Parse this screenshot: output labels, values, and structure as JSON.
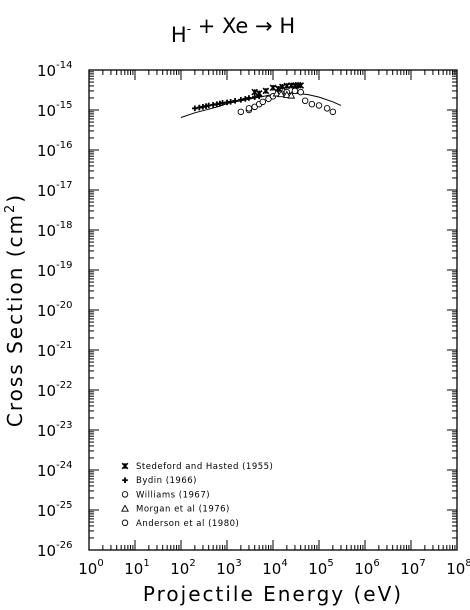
{
  "chart_data": {
    "type": "scatter",
    "title": {
      "projectile": "H",
      "projectile_charge": "-",
      "plus": "+",
      "target": "Xe",
      "arrow": "→",
      "product": "H"
    },
    "xlabel": "Projectile Energy (eV)",
    "ylabel": "Cross Section (cm²)",
    "x_scale": "log",
    "y_scale": "log",
    "xlim": [
      1,
      100000000
    ],
    "ylim": [
      1e-26,
      1e-14
    ],
    "x_ticks": [
      {
        "base": "10",
        "exp": "0",
        "value": 1
      },
      {
        "base": "10",
        "exp": "1",
        "value": 10
      },
      {
        "base": "10",
        "exp": "2",
        "value": 100
      },
      {
        "base": "10",
        "exp": "3",
        "value": 1000
      },
      {
        "base": "10",
        "exp": "4",
        "value": 10000
      },
      {
        "base": "10",
        "exp": "5",
        "value": 100000
      },
      {
        "base": "10",
        "exp": "6",
        "value": 1000000
      },
      {
        "base": "10",
        "exp": "7",
        "value": 10000000
      },
      {
        "base": "10",
        "exp": "8",
        "value": 100000000
      }
    ],
    "y_ticks": [
      {
        "base": "10",
        "exp": "-14",
        "value": 1e-14
      },
      {
        "base": "10",
        "exp": "-15",
        "value": 1e-15
      },
      {
        "base": "10",
        "exp": "-16",
        "value": 1e-16
      },
      {
        "base": "10",
        "exp": "-17",
        "value": 1e-17
      },
      {
        "base": "10",
        "exp": "-18",
        "value": 1e-18
      },
      {
        "base": "10",
        "exp": "-19",
        "value": 1e-19
      },
      {
        "base": "10",
        "exp": "-20",
        "value": 1e-20
      },
      {
        "base": "10",
        "exp": "-21",
        "value": 1e-21
      },
      {
        "base": "10",
        "exp": "-22",
        "value": 1e-22
      },
      {
        "base": "10",
        "exp": "-23",
        "value": 1e-23
      },
      {
        "base": "10",
        "exp": "-24",
        "value": 1e-24
      },
      {
        "base": "10",
        "exp": "-25",
        "value": 1e-25
      },
      {
        "base": "10",
        "exp": "-26",
        "value": 1e-26
      }
    ],
    "legend_position": "bottom-left",
    "grid": false,
    "series": [
      {
        "name": "Stedeford and Hasted (1955)",
        "marker": "star",
        "points": [
          [
            4000,
            2.8e-15
          ],
          [
            5000,
            2.6e-15
          ],
          [
            7000,
            3e-15
          ],
          [
            10000,
            3.6e-15
          ],
          [
            13000,
            3.4e-15
          ],
          [
            16000,
            3.8e-15
          ],
          [
            20000,
            4e-15
          ],
          [
            25000,
            4.1e-15
          ],
          [
            30000,
            4e-15
          ],
          [
            35000,
            4.2e-15
          ],
          [
            40000,
            4.1e-15
          ]
        ]
      },
      {
        "name": "Bydin (1966)",
        "marker": "plus",
        "points": [
          [
            200,
            1.1e-15
          ],
          [
            250,
            1.15e-15
          ],
          [
            300,
            1.2e-15
          ],
          [
            350,
            1.25e-15
          ],
          [
            400,
            1.3e-15
          ],
          [
            500,
            1.35e-15
          ],
          [
            600,
            1.4e-15
          ],
          [
            700,
            1.45e-15
          ],
          [
            800,
            1.5e-15
          ],
          [
            1000,
            1.55e-15
          ],
          [
            1200,
            1.6e-15
          ],
          [
            1500,
            1.7e-15
          ],
          [
            2000,
            1.8e-15
          ],
          [
            2500,
            1.9e-15
          ],
          [
            3000,
            2e-15
          ],
          [
            4000,
            2.1e-15
          ],
          [
            5000,
            2.2e-15
          ]
        ]
      },
      {
        "name": "Williams (1967)",
        "marker": "circle",
        "points": [
          [
            3000,
            1e-15
          ],
          [
            4000,
            1.2e-15
          ],
          [
            5000,
            1.4e-15
          ],
          [
            6000,
            1.6e-15
          ],
          [
            8000,
            1.9e-15
          ],
          [
            10000,
            2.2e-15
          ],
          [
            15000,
            2.6e-15
          ],
          [
            20000,
            2.8e-15
          ]
        ]
      },
      {
        "name": "Morgan et al (1976)",
        "marker": "triangle",
        "points": [
          [
            12000,
            2.6e-15
          ],
          [
            15000,
            2.5e-15
          ],
          [
            20000,
            2.4e-15
          ],
          [
            25000,
            2.3e-15
          ]
        ]
      },
      {
        "name": "Anderson et al (1980)",
        "marker": "circle",
        "points": [
          [
            2000,
            9e-16
          ],
          [
            3000,
            1.1e-15
          ],
          [
            30000,
            3e-15
          ],
          [
            40000,
            2.8e-15
          ],
          [
            50000,
            1.7e-15
          ],
          [
            70000,
            1.4e-15
          ],
          [
            100000,
            1.3e-15
          ],
          [
            150000,
            1.1e-15
          ],
          [
            200000,
            9e-16
          ]
        ]
      }
    ],
    "fit_curve": {
      "points": [
        [
          100,
          6.5e-16
        ],
        [
          200,
          8.5e-16
        ],
        [
          400,
          1.05e-15
        ],
        [
          700,
          1.25e-15
        ],
        [
          1000,
          1.45e-15
        ],
        [
          2000,
          1.7e-15
        ],
        [
          4000,
          2e-15
        ],
        [
          7000,
          2.25e-15
        ],
        [
          10000,
          2.45e-15
        ],
        [
          20000,
          2.6e-15
        ],
        [
          35000,
          2.6e-15
        ],
        [
          60000,
          2.4e-15
        ],
        [
          100000,
          2.1e-15
        ],
        [
          200000,
          1.6e-15
        ],
        [
          300000,
          1.3e-15
        ]
      ]
    }
  }
}
